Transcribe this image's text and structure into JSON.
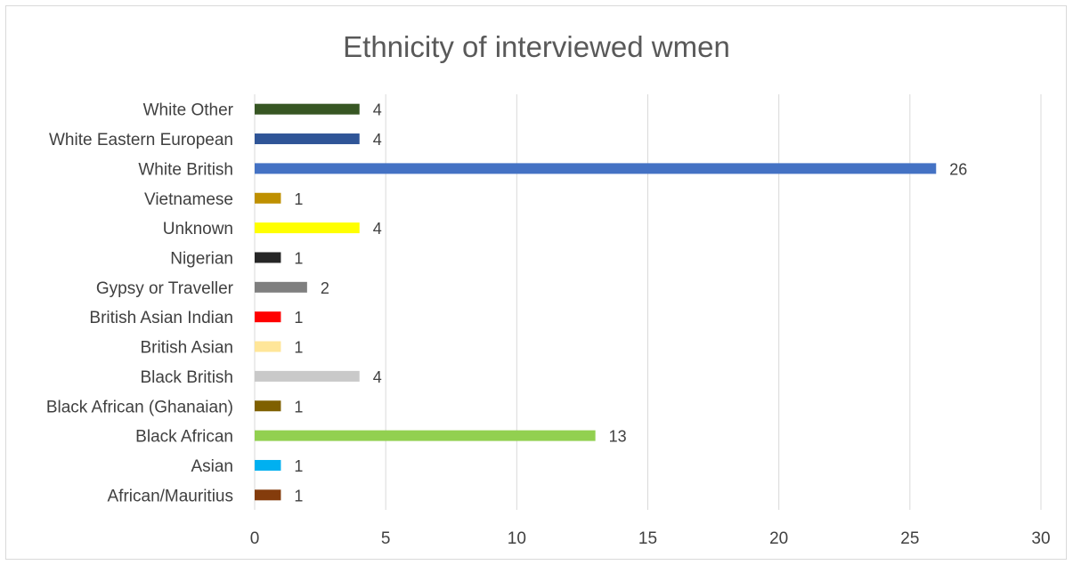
{
  "chart_data": {
    "type": "bar",
    "orientation": "horizontal",
    "title": "Ethnicity of interviewed wmen",
    "categories": [
      "African/Mauritius",
      "Asian",
      "Black African",
      "Black African (Ghanaian)",
      "Black British",
      "British Asian",
      "British Asian Indian",
      "Gypsy or Traveller",
      "Nigerian",
      "Unknown",
      "Vietnamese",
      "White British",
      "White Eastern European",
      "White Other"
    ],
    "values": [
      1,
      1,
      13,
      1,
      4,
      1,
      1,
      2,
      1,
      4,
      1,
      26,
      4,
      4
    ],
    "bar_colors": [
      "#843c0c",
      "#00b0f0",
      "#92d050",
      "#7f6000",
      "#c9c9c9",
      "#ffe699",
      "#ff0000",
      "#7f7f7f",
      "#262626",
      "#ffff00",
      "#bf9000",
      "#4472c4",
      "#2f5597",
      "#375623"
    ],
    "xlim": [
      0,
      30
    ],
    "xticks": [
      0,
      5,
      10,
      15,
      20,
      25,
      30
    ],
    "xlabel": "",
    "ylabel": "",
    "grid": "vertical",
    "legend": "none",
    "data_labels": true
  }
}
